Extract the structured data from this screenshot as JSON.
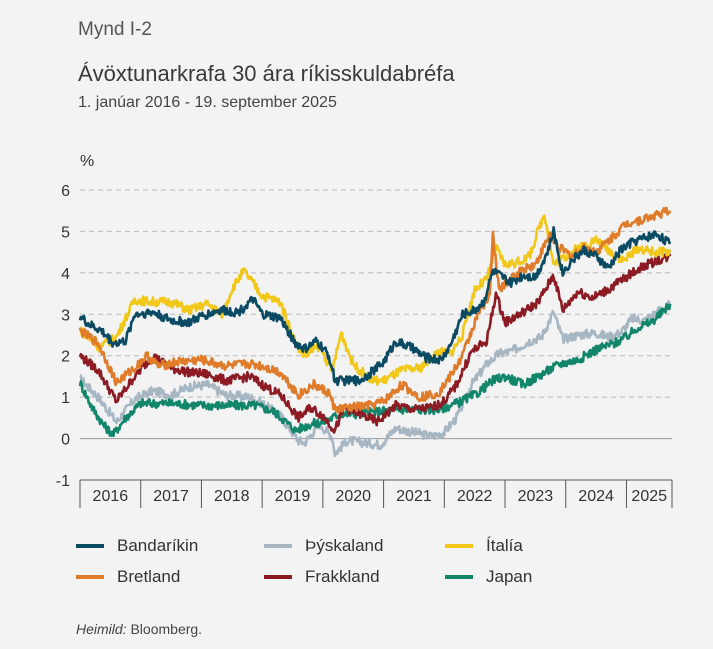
{
  "figure_label": "Mynd I-2",
  "chart_data": {
    "type": "line",
    "title": "Ávöxtunarkrafa 30 ára ríkisskuldabréfa",
    "subtitle": "1. janúar 2016 - 19. september 2025",
    "ylabel": "%",
    "ylim": [
      -1,
      6
    ],
    "yticks": [
      -1,
      0,
      1,
      2,
      3,
      4,
      5,
      6
    ],
    "xlim": [
      2016.0,
      2025.75
    ],
    "xticks": [
      "2016",
      "2017",
      "2018",
      "2019",
      "2020",
      "2021",
      "2022",
      "2023",
      "2024",
      "2025"
    ],
    "grid": "horizontal-dashed",
    "legend_position": "bottom",
    "series": [
      {
        "name": "Bandaríkin",
        "color": "#0b4a63",
        "x": [
          2016.0,
          2016.15,
          2016.35,
          2016.55,
          2016.75,
          2016.9,
          2017.2,
          2017.5,
          2017.8,
          2018.0,
          2018.3,
          2018.6,
          2018.85,
          2019.0,
          2019.3,
          2019.55,
          2019.7,
          2019.9,
          2020.1,
          2020.2,
          2020.4,
          2020.6,
          2020.8,
          2021.0,
          2021.2,
          2021.45,
          2021.7,
          2021.95,
          2022.1,
          2022.3,
          2022.5,
          2022.65,
          2022.8,
          2022.95,
          2023.1,
          2023.3,
          2023.5,
          2023.7,
          2023.8,
          2023.95,
          2024.1,
          2024.3,
          2024.5,
          2024.7,
          2024.9,
          2025.1,
          2025.3,
          2025.5,
          2025.72
        ],
        "values": [
          2.95,
          2.75,
          2.6,
          2.3,
          2.35,
          3.0,
          3.05,
          2.85,
          2.8,
          2.95,
          3.1,
          3.05,
          3.35,
          3.0,
          2.9,
          2.3,
          2.15,
          2.35,
          2.0,
          1.4,
          1.4,
          1.4,
          1.6,
          1.85,
          2.35,
          2.2,
          1.95,
          1.9,
          2.25,
          3.0,
          3.1,
          3.3,
          4.05,
          3.9,
          3.75,
          3.95,
          3.9,
          4.5,
          5.0,
          4.0,
          4.3,
          4.55,
          4.4,
          4.1,
          4.55,
          4.75,
          4.85,
          4.95,
          4.7
        ]
      },
      {
        "name": "Bretland",
        "color": "#e07b2a",
        "x": [
          2016.0,
          2016.3,
          2016.6,
          2016.9,
          2017.1,
          2017.3,
          2017.6,
          2018.0,
          2018.4,
          2018.8,
          2019.0,
          2019.3,
          2019.6,
          2019.85,
          2020.1,
          2020.2,
          2020.5,
          2020.8,
          2021.0,
          2021.3,
          2021.6,
          2021.9,
          2022.1,
          2022.3,
          2022.55,
          2022.75,
          2022.8,
          2022.9,
          2023.1,
          2023.3,
          2023.5,
          2023.75,
          2023.9,
          2024.1,
          2024.3,
          2024.5,
          2024.8,
          2025.0,
          2025.3,
          2025.6,
          2025.72
        ],
        "values": [
          2.6,
          2.3,
          1.35,
          1.7,
          2.0,
          1.75,
          1.85,
          1.9,
          1.75,
          1.8,
          1.75,
          1.6,
          1.05,
          1.3,
          1.1,
          0.7,
          0.75,
          0.8,
          0.9,
          1.3,
          1.0,
          1.1,
          1.5,
          2.0,
          3.0,
          3.5,
          4.9,
          3.6,
          3.85,
          4.1,
          4.2,
          4.95,
          4.6,
          4.4,
          4.6,
          4.5,
          4.9,
          5.2,
          5.3,
          5.45,
          5.5
        ]
      },
      {
        "name": "Þýskaland",
        "color": "#a7b6c3",
        "x": [
          2016.0,
          2016.3,
          2016.6,
          2016.9,
          2017.2,
          2017.5,
          2017.8,
          2018.1,
          2018.4,
          2018.8,
          2019.0,
          2019.3,
          2019.6,
          2019.7,
          2019.95,
          2020.15,
          2020.2,
          2020.4,
          2020.7,
          2020.95,
          2021.2,
          2021.5,
          2021.8,
          2022.0,
          2022.2,
          2022.45,
          2022.7,
          2022.9,
          2023.1,
          2023.4,
          2023.6,
          2023.8,
          2023.95,
          2024.2,
          2024.5,
          2024.7,
          2024.9,
          2025.1,
          2025.3,
          2025.6,
          2025.72
        ],
        "values": [
          1.45,
          1.0,
          0.4,
          0.95,
          1.15,
          1.05,
          1.25,
          1.3,
          1.05,
          1.0,
          0.85,
          0.55,
          -0.05,
          -0.1,
          0.35,
          0.05,
          -0.35,
          -0.05,
          -0.1,
          -0.15,
          0.25,
          0.15,
          0.05,
          0.15,
          0.5,
          1.3,
          1.8,
          2.05,
          2.1,
          2.35,
          2.45,
          3.05,
          2.4,
          2.5,
          2.55,
          2.45,
          2.55,
          2.9,
          2.85,
          3.15,
          3.25
        ]
      },
      {
        "name": "Ítalía",
        "color": "#f2c718",
        "x": [
          2016.0,
          2016.3,
          2016.6,
          2016.9,
          2017.2,
          2017.5,
          2017.8,
          2018.1,
          2018.35,
          2018.5,
          2018.7,
          2018.85,
          2019.0,
          2019.3,
          2019.55,
          2019.7,
          2019.95,
          2020.15,
          2020.3,
          2020.5,
          2020.8,
          2021.0,
          2021.3,
          2021.6,
          2021.9,
          2022.1,
          2022.3,
          2022.5,
          2022.7,
          2022.85,
          2023.0,
          2023.2,
          2023.4,
          2023.65,
          2023.8,
          2024.0,
          2024.2,
          2024.5,
          2024.75,
          2024.95,
          2025.2,
          2025.45,
          2025.72
        ],
        "values": [
          2.65,
          2.2,
          2.45,
          3.35,
          3.3,
          3.3,
          3.1,
          3.25,
          3.0,
          3.6,
          4.05,
          3.75,
          3.45,
          3.3,
          2.3,
          2.0,
          2.25,
          1.6,
          2.55,
          1.8,
          1.4,
          1.4,
          1.65,
          1.7,
          2.1,
          2.05,
          2.5,
          3.6,
          3.85,
          4.6,
          4.2,
          4.25,
          4.4,
          5.45,
          4.2,
          4.4,
          4.6,
          4.8,
          4.5,
          4.3,
          4.6,
          4.5,
          4.5
        ]
      },
      {
        "name": "Frakkland",
        "color": "#8c1b24",
        "x": [
          2016.0,
          2016.3,
          2016.6,
          2016.9,
          2017.2,
          2017.5,
          2017.8,
          2018.1,
          2018.4,
          2018.8,
          2019.0,
          2019.3,
          2019.6,
          2019.8,
          2020.0,
          2020.2,
          2020.35,
          2020.6,
          2020.9,
          2021.2,
          2021.5,
          2021.8,
          2022.0,
          2022.2,
          2022.45,
          2022.7,
          2022.85,
          2023.0,
          2023.3,
          2023.55,
          2023.8,
          2023.95,
          2024.2,
          2024.45,
          2024.7,
          2024.95,
          2025.2,
          2025.5,
          2025.72
        ],
        "values": [
          2.0,
          1.65,
          0.9,
          1.5,
          2.0,
          1.7,
          1.6,
          1.55,
          1.4,
          1.5,
          1.3,
          1.05,
          0.5,
          0.75,
          0.55,
          0.2,
          0.75,
          0.6,
          0.4,
          0.8,
          0.7,
          0.75,
          0.9,
          1.3,
          2.1,
          2.35,
          3.5,
          2.8,
          3.05,
          3.3,
          3.95,
          3.1,
          3.55,
          3.4,
          3.6,
          3.85,
          4.1,
          4.3,
          4.4
        ]
      },
      {
        "name": "Japan",
        "color": "#12866b",
        "x": [
          2016.0,
          2016.2,
          2016.4,
          2016.55,
          2016.75,
          2017.0,
          2017.5,
          2018.0,
          2018.5,
          2018.9,
          2019.2,
          2019.55,
          2019.8,
          2020.0,
          2020.3,
          2020.6,
          2020.9,
          2021.2,
          2021.6,
          2021.9,
          2022.2,
          2022.5,
          2022.8,
          2023.0,
          2023.3,
          2023.6,
          2023.9,
          2024.2,
          2024.5,
          2024.8,
          2025.0,
          2025.2,
          2025.4,
          2025.6,
          2025.72
        ],
        "values": [
          1.35,
          0.75,
          0.3,
          0.1,
          0.5,
          0.85,
          0.85,
          0.8,
          0.8,
          0.8,
          0.65,
          0.2,
          0.35,
          0.4,
          0.6,
          0.6,
          0.65,
          0.7,
          0.7,
          0.7,
          0.85,
          1.05,
          1.4,
          1.5,
          1.3,
          1.55,
          1.8,
          1.9,
          2.15,
          2.3,
          2.45,
          2.7,
          2.8,
          3.05,
          3.25
        ]
      }
    ]
  },
  "legend": [
    {
      "label": "Bandaríkin",
      "color": "#0b4a63"
    },
    {
      "label": "Bretland",
      "color": "#e07b2a"
    },
    {
      "label": "Þýskaland",
      "color": "#a7b6c3"
    },
    {
      "label": "Frakkland",
      "color": "#8c1b24"
    },
    {
      "label": "Ítalía",
      "color": "#f2c718"
    },
    {
      "label": "Japan",
      "color": "#12866b"
    }
  ],
  "source": {
    "label": "Heimild:",
    "text": "Bloomberg."
  }
}
